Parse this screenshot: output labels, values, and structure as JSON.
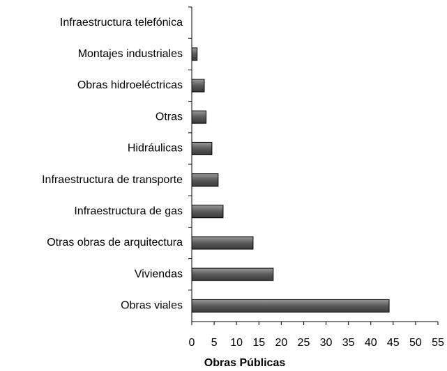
{
  "chart_data": {
    "type": "barh",
    "xlabel": "Obras Públicas",
    "categories": [
      "Infraestructura telefónica",
      "Montajes industriales",
      "Obras hidroeléctricas",
      "Otras",
      "Hidráulicas",
      "Infraestructura de transporte",
      "Infraestructura de gas",
      "Otras obras de arquitectura",
      "Viviendas",
      "Obras viales"
    ],
    "values": [
      0,
      1.2,
      2.8,
      3.2,
      4.5,
      5.9,
      7.0,
      13.7,
      18.2,
      44.1
    ],
    "color": "#707070",
    "xlim": [
      0,
      55
    ],
    "xticks": [
      0,
      5,
      10,
      15,
      20,
      25,
      30,
      35,
      40,
      45,
      50,
      55
    ]
  }
}
